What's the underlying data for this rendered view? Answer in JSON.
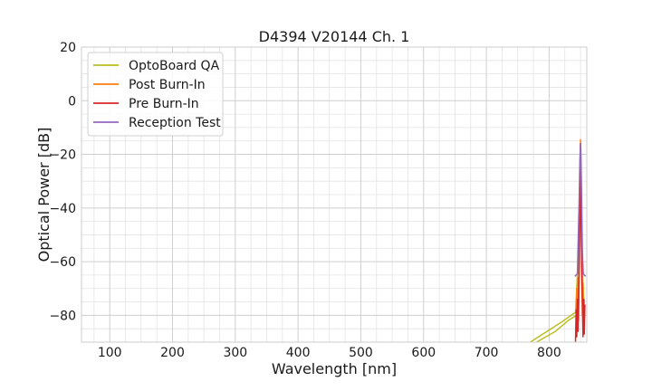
{
  "chart_data": {
    "type": "line",
    "title": "D4394 V20144 Ch. 1",
    "xlabel": "Wavelength [nm]",
    "ylabel": "Optical Power [dB]",
    "xlim": [
      55,
      860
    ],
    "ylim": [
      -90,
      20
    ],
    "xticks": [
      100,
      200,
      300,
      400,
      500,
      600,
      700,
      800
    ],
    "yticks": [
      20,
      0,
      -20,
      -40,
      -60,
      -80
    ],
    "xminor": [
      75,
      125,
      150,
      175,
      225,
      250,
      275,
      325,
      350,
      375,
      425,
      450,
      475,
      525,
      550,
      575,
      625,
      650,
      675,
      725,
      750,
      775,
      825,
      850
    ],
    "yminor": [
      15,
      10,
      5,
      -5,
      -10,
      -15,
      -25,
      -30,
      -35,
      -45,
      -50,
      -55,
      -65,
      -70,
      -75,
      -85
    ],
    "grid": true,
    "legend_position": "top-left",
    "series": [
      {
        "name": "OptoBoard QA",
        "color": "#bcbd22",
        "x": [
          770,
          800,
          820,
          838,
          842,
          846,
          849,
          850,
          851,
          853,
          856
        ],
        "y": [
          -90,
          -85.5,
          -82.5,
          -79.5,
          -79,
          -60,
          -32,
          -16,
          -32,
          -62,
          -80
        ]
      },
      {
        "name": "OptoBoard QA",
        "color": "#bcbd22",
        "x": [
          780,
          810,
          830,
          840,
          846
        ],
        "y": [
          -90,
          -86,
          -82,
          -80.5,
          -79.5
        ]
      },
      {
        "name": "Post Burn-In",
        "color": "#ff7f0e",
        "x": [
          843,
          844,
          845,
          846,
          847,
          848,
          849,
          849.5,
          850,
          850.5,
          851,
          852,
          853,
          854,
          855,
          856
        ],
        "y": [
          -85,
          -70,
          -84,
          -66,
          -82,
          -60,
          -40,
          -25,
          -14.5,
          -25,
          -42,
          -62,
          -80,
          -68,
          -83,
          -74
        ]
      },
      {
        "name": "Pre Burn-In",
        "color": "#d62728",
        "x": [
          842,
          843,
          844,
          845,
          846,
          847,
          848,
          849,
          849.5,
          850,
          850.5,
          851,
          852,
          853,
          854,
          855,
          856,
          857
        ],
        "y": [
          -90,
          -78,
          -88,
          -74,
          -86,
          -72,
          -58,
          -40,
          -28,
          -16,
          -30,
          -46,
          -64,
          -76,
          -88,
          -74,
          -87,
          -76
        ]
      },
      {
        "name": "Reception Test",
        "color": "#9467bd",
        "x": [
          841,
          843,
          845,
          846.5,
          848,
          849,
          850,
          850.5,
          851,
          852,
          853,
          854.5,
          856,
          858
        ],
        "y": [
          -65.5,
          -65,
          -64.5,
          -50,
          -35,
          -22,
          -16,
          -18,
          -25,
          -40,
          -57,
          -64.5,
          -65,
          -65.5
        ]
      }
    ],
    "legend": [
      {
        "label": "OptoBoard QA",
        "color": "#bcbd22"
      },
      {
        "label": "Post Burn-In",
        "color": "#ff7f0e"
      },
      {
        "label": "Pre Burn-In",
        "color": "#d62728"
      },
      {
        "label": "Reception Test",
        "color": "#9467bd"
      }
    ]
  }
}
